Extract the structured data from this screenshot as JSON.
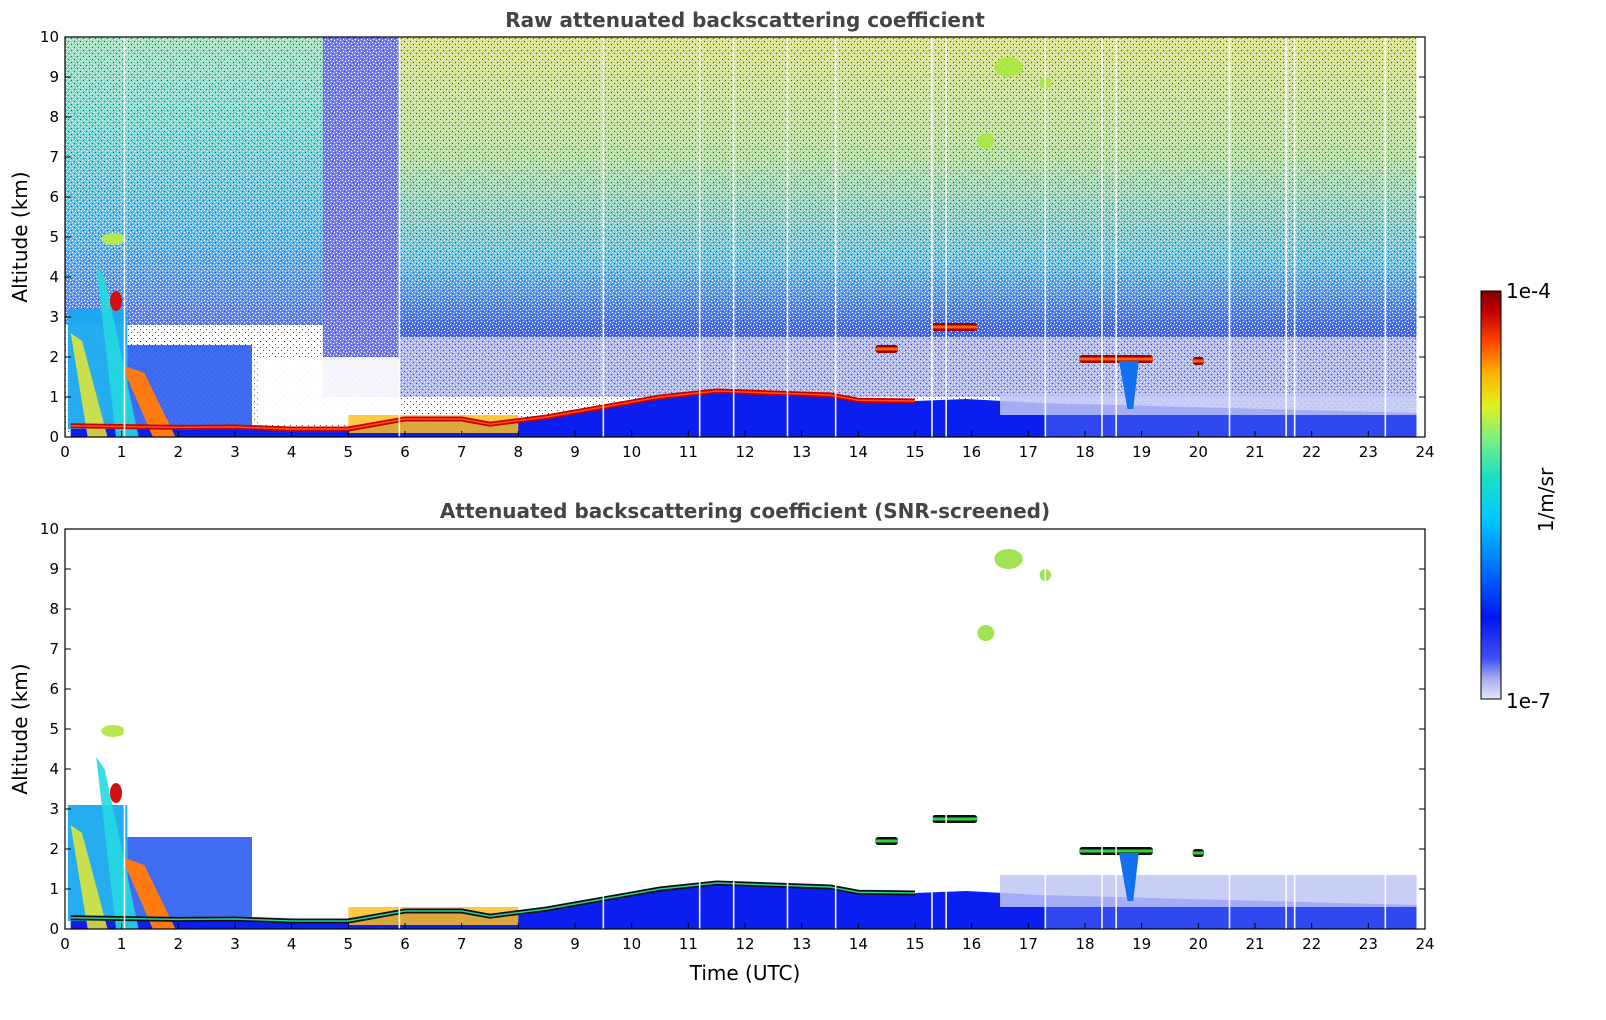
{
  "chart_data": [
    {
      "type": "heatmap",
      "title": "Raw attenuated backscattering coefficient",
      "xlabel": "",
      "ylabel": "Altitude (km)",
      "xlim": [
        0,
        24
      ],
      "ylim": [
        0,
        10
      ],
      "xticks": [
        "0",
        "1",
        "2",
        "3",
        "4",
        "5",
        "6",
        "7",
        "8",
        "9",
        "10",
        "11",
        "12",
        "13",
        "14",
        "15",
        "16",
        "17",
        "18",
        "19",
        "20",
        "21",
        "22",
        "23",
        "24"
      ],
      "yticks": [
        "0",
        "1",
        "2",
        "3",
        "4",
        "5",
        "6",
        "7",
        "8",
        "9",
        "10"
      ],
      "data_end_time": 23.85,
      "boundary_layer_top": [
        {
          "t": 0.1,
          "z": 0.28
        },
        {
          "t": 2.0,
          "z": 0.24
        },
        {
          "t": 3.0,
          "z": 0.25
        },
        {
          "t": 4.0,
          "z": 0.2
        },
        {
          "t": 5.0,
          "z": 0.2
        },
        {
          "t": 6.0,
          "z": 0.45
        },
        {
          "t": 7.0,
          "z": 0.45
        },
        {
          "t": 7.5,
          "z": 0.32
        },
        {
          "t": 8.5,
          "z": 0.5
        },
        {
          "t": 9.5,
          "z": 0.75
        },
        {
          "t": 10.5,
          "z": 1.0
        },
        {
          "t": 11.5,
          "z": 1.15
        },
        {
          "t": 12.5,
          "z": 1.1
        },
        {
          "t": 13.5,
          "z": 1.05
        },
        {
          "t": 14.0,
          "z": 0.92
        },
        {
          "t": 15.0,
          "z": 0.9
        }
      ],
      "cloud_layers": [
        {
          "t0": 14.3,
          "t1": 14.7,
          "z": 2.2
        },
        {
          "t0": 15.3,
          "t1": 16.1,
          "z": 2.75
        },
        {
          "t0": 17.9,
          "t1": 19.2,
          "z": 1.95
        },
        {
          "t0": 19.9,
          "t1": 20.1,
          "z": 1.9
        }
      ],
      "high_aerosol_patches": [
        {
          "t0": 16.4,
          "t1": 16.9,
          "z0": 9.0,
          "z1": 9.5
        },
        {
          "t0": 17.2,
          "t1": 17.4,
          "z0": 8.7,
          "z1": 9.0
        },
        {
          "t0": 16.1,
          "t1": 16.4,
          "z0": 7.2,
          "z1": 7.6
        }
      ]
    },
    {
      "type": "heatmap",
      "title": "Attenuated backscattering coefficient (SNR-screened)",
      "xlabel": "Time (UTC)",
      "ylabel": "Altitude (km)",
      "xlim": [
        0,
        24
      ],
      "ylim": [
        0,
        10
      ],
      "xticks": [
        "0",
        "1",
        "2",
        "3",
        "4",
        "5",
        "6",
        "7",
        "8",
        "9",
        "10",
        "11",
        "12",
        "13",
        "14",
        "15",
        "16",
        "17",
        "18",
        "19",
        "20",
        "21",
        "22",
        "23",
        "24"
      ],
      "yticks": [
        "0",
        "1",
        "2",
        "3",
        "4",
        "5",
        "6",
        "7",
        "8",
        "9",
        "10"
      ],
      "data_end_time": 23.85,
      "boundary_layer_top": [
        {
          "t": 0.1,
          "z": 0.28
        },
        {
          "t": 2.0,
          "z": 0.24
        },
        {
          "t": 3.0,
          "z": 0.25
        },
        {
          "t": 4.0,
          "z": 0.2
        },
        {
          "t": 5.0,
          "z": 0.2
        },
        {
          "t": 6.0,
          "z": 0.45
        },
        {
          "t": 7.0,
          "z": 0.45
        },
        {
          "t": 7.5,
          "z": 0.32
        },
        {
          "t": 8.5,
          "z": 0.5
        },
        {
          "t": 9.5,
          "z": 0.75
        },
        {
          "t": 10.5,
          "z": 1.0
        },
        {
          "t": 11.5,
          "z": 1.15
        },
        {
          "t": 12.5,
          "z": 1.1
        },
        {
          "t": 13.5,
          "z": 1.05
        },
        {
          "t": 14.0,
          "z": 0.92
        },
        {
          "t": 15.0,
          "z": 0.9
        }
      ],
      "cloud_layers": [
        {
          "t0": 14.3,
          "t1": 14.7,
          "z": 2.2
        },
        {
          "t0": 15.3,
          "t1": 16.1,
          "z": 2.75
        },
        {
          "t0": 17.9,
          "t1": 19.2,
          "z": 1.95
        },
        {
          "t0": 19.9,
          "t1": 20.1,
          "z": 1.9
        }
      ],
      "high_aerosol_patches": [
        {
          "t0": 16.4,
          "t1": 16.9,
          "z0": 9.0,
          "z1": 9.5
        },
        {
          "t0": 17.2,
          "t1": 17.4,
          "z0": 8.7,
          "z1": 9.0
        },
        {
          "t0": 16.1,
          "t1": 16.4,
          "z0": 7.2,
          "z1": 7.6
        }
      ]
    }
  ],
  "colorbar": {
    "label": "1/m/sr",
    "max_label": "1e-4",
    "min_label": "1e-7",
    "scale": "log",
    "colormap": "jet",
    "stops": [
      "#e4e6fa",
      "#a6acf0",
      "#3f4ff2",
      "#0016f0",
      "#0070ff",
      "#00c8ff",
      "#20e0c0",
      "#80f080",
      "#e0f020",
      "#ffb000",
      "#ff4000",
      "#c00000",
      "#7f0000"
    ]
  },
  "colors": {
    "title": "#444444",
    "axes": "#000000",
    "background": "#ffffff"
  }
}
